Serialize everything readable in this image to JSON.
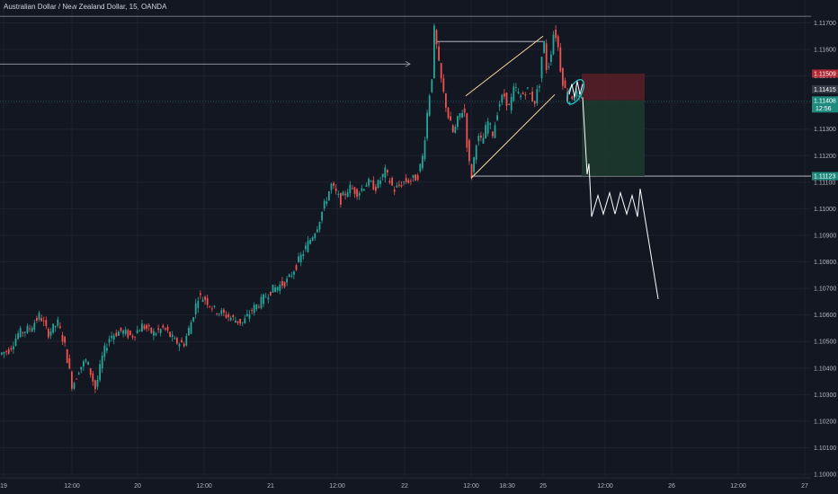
{
  "header": {
    "title": "Australian Dollar / New Zealand Dollar, 15, OANDA"
  },
  "colors": {
    "background": "#131722",
    "up": "#26a69a",
    "down": "#ef5350",
    "grid": "#1e222d",
    "drawing": "#d1d4dc",
    "pattern": "#f6d7a0",
    "stop_zone": "#5b1f26",
    "target_zone": "#1d3b2e",
    "circle": "#22c7c7"
  },
  "icons": {
    "zoom": "magnifier-icon"
  },
  "price_tags": {
    "stop": "1.11509",
    "current": "1.11415",
    "last": "1.11408",
    "countdown": "12:56",
    "target": "1.11123"
  },
  "chart_data": {
    "type": "candlestick",
    "symbol": "AUDNZD",
    "interval": "15",
    "source": "OANDA",
    "x_ticks": [
      "19",
      "12:00",
      "20",
      "12:00",
      "21",
      "12:00",
      "22",
      "12:00",
      "18:30",
      "25",
      "12:00",
      "26",
      "12:00",
      "27"
    ],
    "y_ticks": [
      "1.11700",
      "1.11600",
      "1.11500",
      "1.11400",
      "1.11300",
      "1.11200",
      "1.11100",
      "1.11000",
      "1.10900",
      "1.10800",
      "1.10700",
      "1.10600",
      "1.10500",
      "1.10400",
      "1.10300",
      "1.10200",
      "1.10100",
      "1.10000"
    ],
    "ylim": [
      1.1,
      1.1178
    ],
    "path_points": [
      [
        0,
        1.1045
      ],
      [
        12,
        1.1047
      ],
      [
        22,
        1.1053
      ],
      [
        35,
        1.1055
      ],
      [
        46,
        1.106
      ],
      [
        55,
        1.1053
      ],
      [
        66,
        1.1057
      ],
      [
        74,
        1.1048
      ],
      [
        82,
        1.1033
      ],
      [
        90,
        1.104
      ],
      [
        98,
        1.1043
      ],
      [
        108,
        1.1032
      ],
      [
        116,
        1.1045
      ],
      [
        124,
        1.1052
      ],
      [
        136,
        1.1054
      ],
      [
        148,
        1.1052
      ],
      [
        160,
        1.1056
      ],
      [
        172,
        1.1053
      ],
      [
        184,
        1.1055
      ],
      [
        196,
        1.105
      ],
      [
        206,
        1.1049
      ],
      [
        214,
        1.1057
      ],
      [
        222,
        1.1067
      ],
      [
        230,
        1.1066
      ],
      [
        240,
        1.1062
      ],
      [
        252,
        1.106
      ],
      [
        264,
        1.1058
      ],
      [
        272,
        1.1057
      ],
      [
        282,
        1.1062
      ],
      [
        292,
        1.1065
      ],
      [
        302,
        1.1069
      ],
      [
        312,
        1.1071
      ],
      [
        322,
        1.1073
      ],
      [
        330,
        1.1078
      ],
      [
        338,
        1.1083
      ],
      [
        346,
        1.1088
      ],
      [
        354,
        1.1093
      ],
      [
        362,
        1.1101
      ],
      [
        370,
        1.1109
      ],
      [
        380,
        1.1103
      ],
      [
        390,
        1.1108
      ],
      [
        400,
        1.1106
      ],
      [
        410,
        1.111
      ],
      [
        420,
        1.1108
      ],
      [
        430,
        1.1114
      ],
      [
        440,
        1.1107
      ],
      [
        450,
        1.111
      ],
      [
        460,
        1.1111
      ],
      [
        466,
        1.1112
      ],
      [
        472,
        1.112
      ],
      [
        478,
        1.114
      ],
      [
        482,
        1.115
      ],
      [
        485,
        1.117
      ],
      [
        488,
        1.1158
      ],
      [
        494,
        1.1145
      ],
      [
        500,
        1.1135
      ],
      [
        506,
        1.1128
      ],
      [
        512,
        1.1135
      ],
      [
        518,
        1.1138
      ],
      [
        522,
        1.112
      ],
      [
        526,
        1.1112
      ],
      [
        532,
        1.1127
      ],
      [
        538,
        1.1125
      ],
      [
        544,
        1.1133
      ],
      [
        550,
        1.1128
      ],
      [
        556,
        1.1139
      ],
      [
        562,
        1.1143
      ],
      [
        568,
        1.1138
      ],
      [
        574,
        1.1146
      ],
      [
        580,
        1.1142
      ],
      [
        588,
        1.1145
      ],
      [
        596,
        1.114
      ],
      [
        602,
        1.1148
      ],
      [
        606,
        1.1165
      ],
      [
        610,
        1.1151
      ],
      [
        614,
        1.1158
      ],
      [
        618,
        1.1168
      ],
      [
        622,
        1.1162
      ],
      [
        626,
        1.115
      ],
      [
        630,
        1.1145
      ],
      [
        634,
        1.114
      ],
      [
        638,
        1.1142
      ],
      [
        642,
        1.1144
      ],
      [
        646,
        1.1141
      ]
    ]
  }
}
